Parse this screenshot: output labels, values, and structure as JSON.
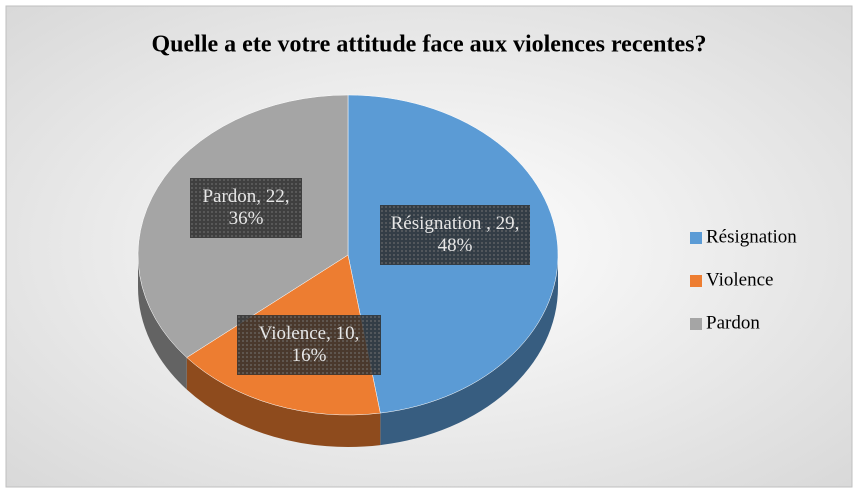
{
  "chart_data": {
    "type": "pie3d",
    "title": "Quelle a ete votre attitude face aux violences recentes?",
    "categories": [
      "Résignation",
      "Violence",
      "Pardon"
    ],
    "values": [
      29,
      10,
      22
    ],
    "value_labels": [
      "Résignation , 29, 48%",
      "Violence, 10, 16%",
      "Pardon, 22, 36%"
    ],
    "colors": [
      "#5b9bd5",
      "#ed7d31",
      "#a5a5a5"
    ],
    "legend": "right"
  }
}
